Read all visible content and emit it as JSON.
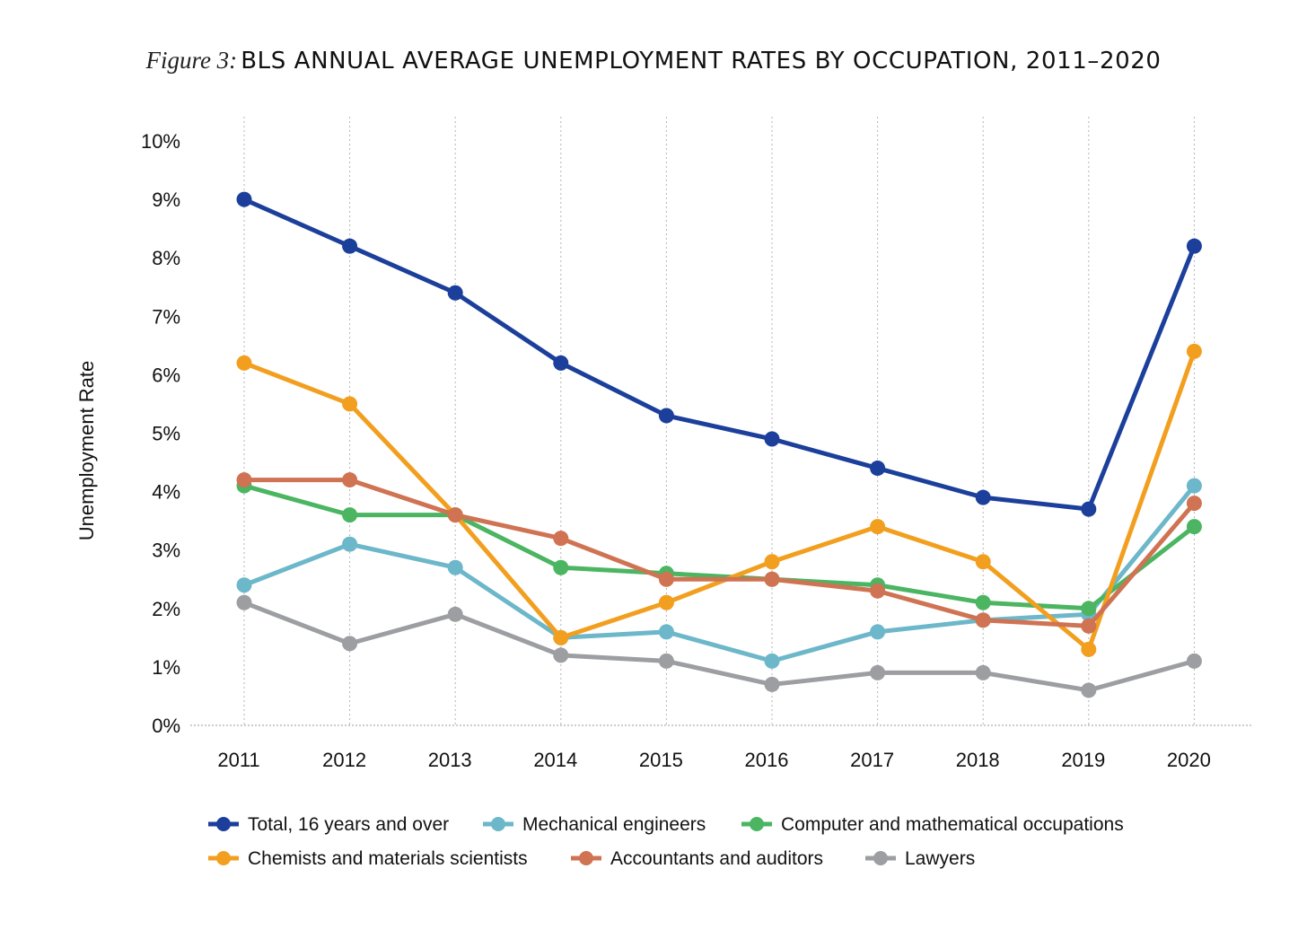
{
  "figure": {
    "label": "Figure 3:",
    "title": "BLS ANNUAL AVERAGE UNEMPLOYMENT RATES BY OCCUPATION, 2011–2020"
  },
  "chart_data": {
    "type": "line",
    "title": "BLS ANNUAL AVERAGE UNEMPLOYMENT RATES BY OCCUPATION, 2011–2020",
    "xlabel": "",
    "ylabel": "Unemployment Rate",
    "x": [
      "2011",
      "2012",
      "2013",
      "2014",
      "2015",
      "2016",
      "2017",
      "2018",
      "2019",
      "2020"
    ],
    "ylim": [
      0,
      10
    ],
    "yticks": [
      "0%",
      "1%",
      "2%",
      "3%",
      "4%",
      "5%",
      "6%",
      "7%",
      "8%",
      "9%",
      "10%"
    ],
    "grid": "vertical dotted",
    "legend_position": "bottom",
    "series": [
      {
        "name": "Total, 16 years and over",
        "color": "#1b3f9a",
        "values": [
          9.0,
          8.2,
          7.4,
          6.2,
          5.3,
          4.9,
          4.4,
          3.9,
          3.7,
          8.2
        ]
      },
      {
        "name": "Mechanical engineers",
        "color": "#6cb7c9",
        "values": [
          2.4,
          3.1,
          2.7,
          1.5,
          1.6,
          1.1,
          1.6,
          1.8,
          1.9,
          4.1
        ]
      },
      {
        "name": "Computer and mathematical occupations",
        "color": "#4bb562",
        "values": [
          4.1,
          3.6,
          3.6,
          2.7,
          2.6,
          2.5,
          2.4,
          2.1,
          2.0,
          3.4
        ]
      },
      {
        "name": "Chemists and materials scientists",
        "color": "#f29f1f",
        "values": [
          6.2,
          5.5,
          3.6,
          1.5,
          2.1,
          2.8,
          3.4,
          2.8,
          1.3,
          6.4
        ]
      },
      {
        "name": "Accountants and auditors",
        "color": "#cf7352",
        "values": [
          4.2,
          4.2,
          3.6,
          3.2,
          2.5,
          2.5,
          2.3,
          1.8,
          1.7,
          3.8
        ]
      },
      {
        "name": "Lawyers",
        "color": "#9c9ea2",
        "values": [
          2.1,
          1.4,
          1.9,
          1.2,
          1.1,
          0.7,
          0.9,
          0.9,
          0.6,
          1.1
        ]
      }
    ]
  }
}
